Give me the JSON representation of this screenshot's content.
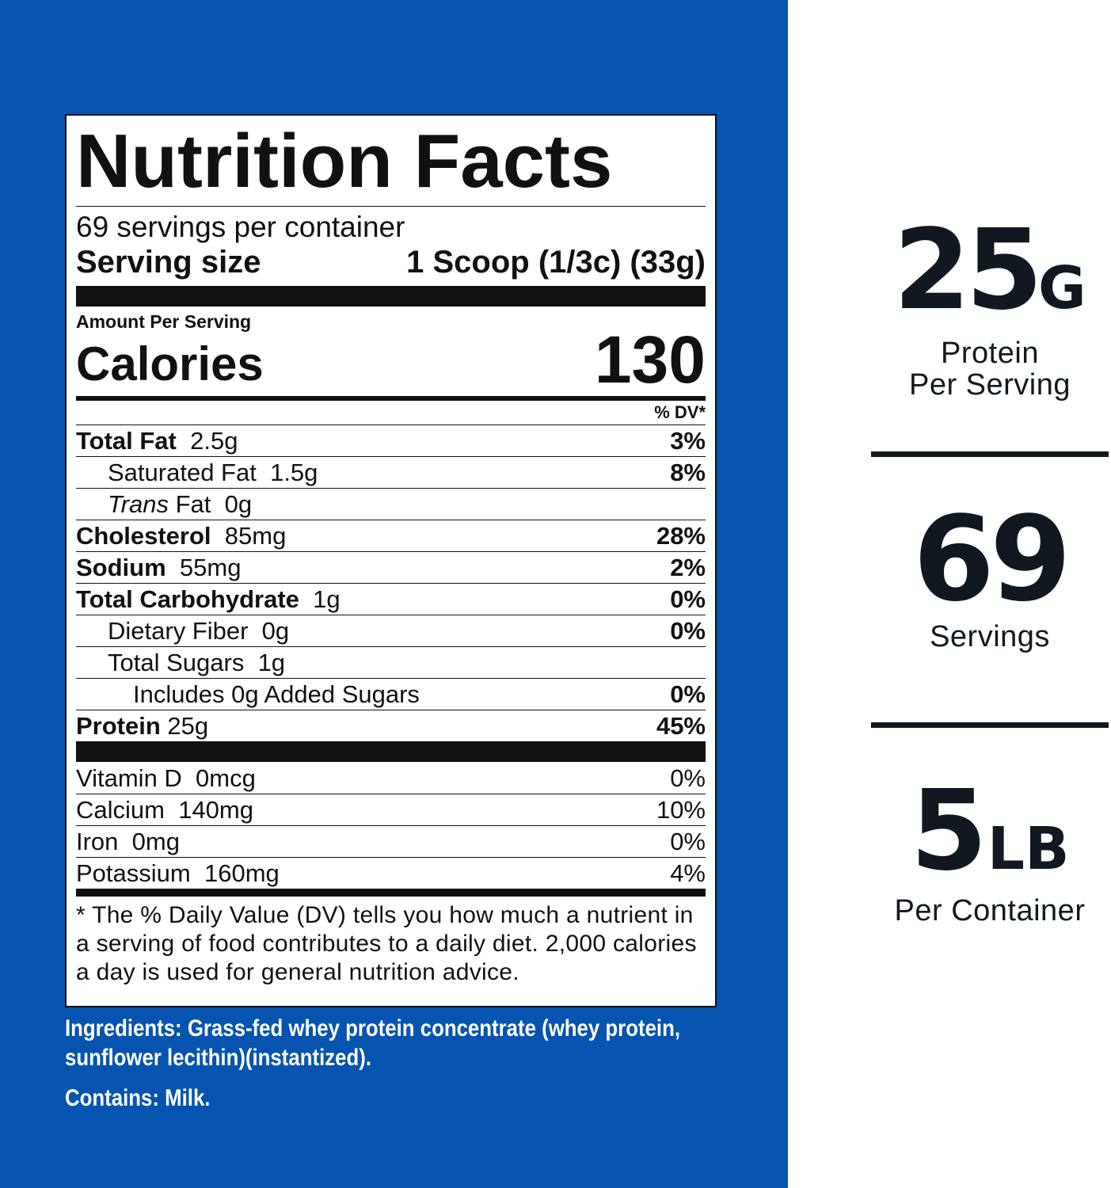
{
  "colors": {
    "panel_blue": "#0654B0",
    "text_dark": "#111820"
  },
  "label": {
    "title": "Nutrition Facts",
    "servings_per_container": "69 servings per container",
    "serving_size_label": "Serving size",
    "serving_size_value": "1 Scoop (1/3c) (33g)",
    "amount_per_serving": "Amount Per Serving",
    "calories_label": "Calories",
    "calories_value": "130",
    "dv_header": "% DV*",
    "nutrients": [
      {
        "name": "Total Fat",
        "amount": "2.5g",
        "pct": "3%"
      },
      {
        "name": "Saturated Fat",
        "amount": "1.5g",
        "pct": "8%"
      },
      {
        "name_prefix": "Trans",
        "name": "Fat",
        "amount": "0g",
        "pct": ""
      },
      {
        "name": "Cholesterol",
        "amount": "85mg",
        "pct": "28%"
      },
      {
        "name": "Sodium",
        "amount": "55mg",
        "pct": "2%"
      },
      {
        "name": "Total Carbohydrate",
        "amount": "1g",
        "pct": "0%"
      },
      {
        "name": "Dietary Fiber",
        "amount": "0g",
        "pct": "0%"
      },
      {
        "name": "Total Sugars",
        "amount": "1g",
        "pct": ""
      },
      {
        "name": "Includes 0g Added Sugars",
        "amount": "",
        "pct": "0%"
      },
      {
        "name": "Protein",
        "amount": "25g",
        "pct": "45%"
      }
    ],
    "vitamins": [
      {
        "name": "Vitamin D",
        "amount": "0mcg",
        "pct": "0%"
      },
      {
        "name": "Calcium",
        "amount": "140mg",
        "pct": "10%"
      },
      {
        "name": "Iron",
        "amount": "0mg",
        "pct": "0%"
      },
      {
        "name": "Potassium",
        "amount": "160mg",
        "pct": "4%"
      }
    ],
    "footnote": "* The % Daily Value (DV) tells you how much a nutrient in a serving of food contributes to a daily diet. 2,000 calories a day is used for general nutrition advice."
  },
  "ingredients": "Ingredients: Grass-fed whey protein concentrate (whey protein, sunflower lecithin)(instantized).",
  "contains": "Contains: Milk.",
  "stats": [
    {
      "value": "25",
      "unit": "G",
      "label_line1": "Protein",
      "label_line2": "Per Serving"
    },
    {
      "value": "69",
      "unit": "",
      "label_line1": "Servings",
      "label_line2": ""
    },
    {
      "value": "5",
      "unit": "LB",
      "label_line1": "Per Container",
      "label_line2": ""
    }
  ]
}
